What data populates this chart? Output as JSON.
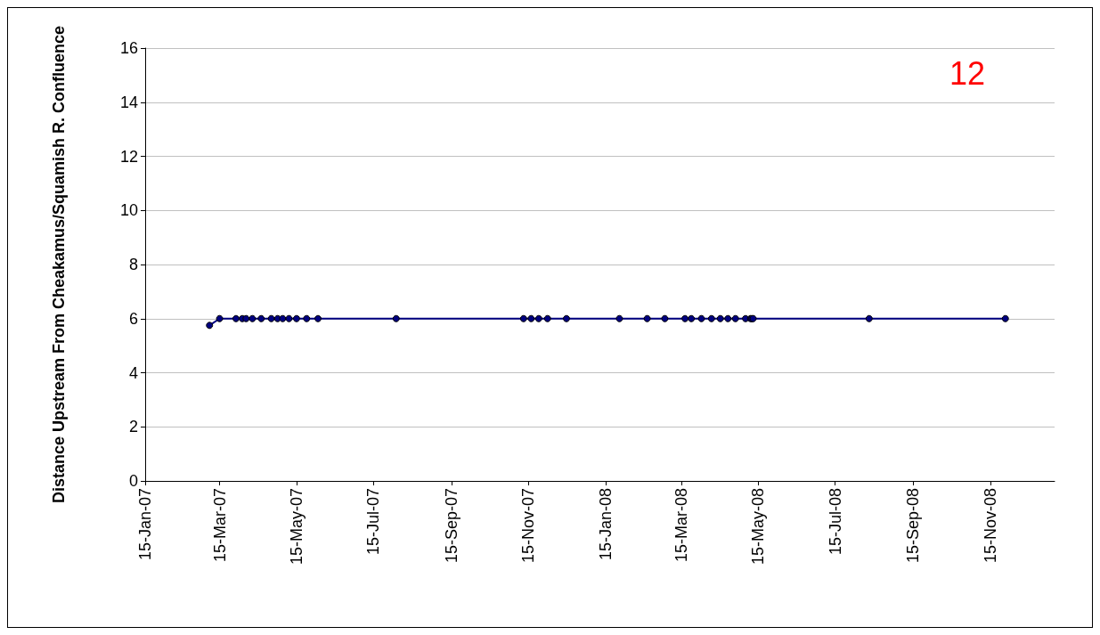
{
  "chart_data": {
    "type": "line",
    "ylabel": "Distance Upstream From Cheakamus/Squamish R. Confluence",
    "annotations": [
      "12"
    ],
    "x": [
      "2007-03-07",
      "2007-03-15",
      "2007-03-28",
      "2007-04-02",
      "2007-04-05",
      "2007-04-10",
      "2007-04-17",
      "2007-04-25",
      "2007-04-30",
      "2007-05-04",
      "2007-05-09",
      "2007-05-15",
      "2007-05-23",
      "2007-06-01",
      "2007-08-02",
      "2007-11-11",
      "2007-11-17",
      "2007-11-23",
      "2007-11-30",
      "2007-12-15",
      "2008-01-26",
      "2008-02-17",
      "2008-03-02",
      "2008-03-18",
      "2008-03-23",
      "2008-03-31",
      "2008-04-08",
      "2008-04-15",
      "2008-04-21",
      "2008-04-27",
      "2008-05-05",
      "2008-05-09",
      "2008-05-10",
      "2008-05-11",
      "2008-08-11",
      "2008-11-27"
    ],
    "series": [
      {
        "color": "#000080",
        "values": [
          5.75,
          6,
          6,
          6,
          6,
          6,
          6,
          6,
          6,
          6,
          6,
          6,
          6,
          6,
          6,
          6,
          6,
          6,
          6,
          6,
          6,
          6,
          6,
          6,
          6,
          6,
          6,
          6,
          6,
          6,
          6,
          6,
          6,
          6,
          6,
          6
        ]
      }
    ],
    "xlim": [
      "2007-01-15",
      "2009-01-05"
    ],
    "xticks": [
      {
        "value": "2007-01-15",
        "label": "15-Jan-07"
      },
      {
        "value": "2007-03-15",
        "label": "15-Mar-07"
      },
      {
        "value": "2007-05-15",
        "label": "15-May-07"
      },
      {
        "value": "2007-07-15",
        "label": "15-Jul-07"
      },
      {
        "value": "2007-09-15",
        "label": "15-Sep-07"
      },
      {
        "value": "2007-11-15",
        "label": "15-Nov-07"
      },
      {
        "value": "2008-01-15",
        "label": "15-Jan-08"
      },
      {
        "value": "2008-03-15",
        "label": "15-Mar-08"
      },
      {
        "value": "2008-05-15",
        "label": "15-May-08"
      },
      {
        "value": "2008-07-15",
        "label": "15-Jul-08"
      },
      {
        "value": "2008-09-15",
        "label": "15-Sep-08"
      },
      {
        "value": "2008-11-15",
        "label": "15-Nov-08"
      }
    ],
    "ylim": [
      0,
      16
    ],
    "yticks": [
      0,
      2,
      4,
      6,
      8,
      10,
      12,
      14,
      16
    ],
    "grid": "y",
    "marker": "circle",
    "line_style": "solid"
  }
}
